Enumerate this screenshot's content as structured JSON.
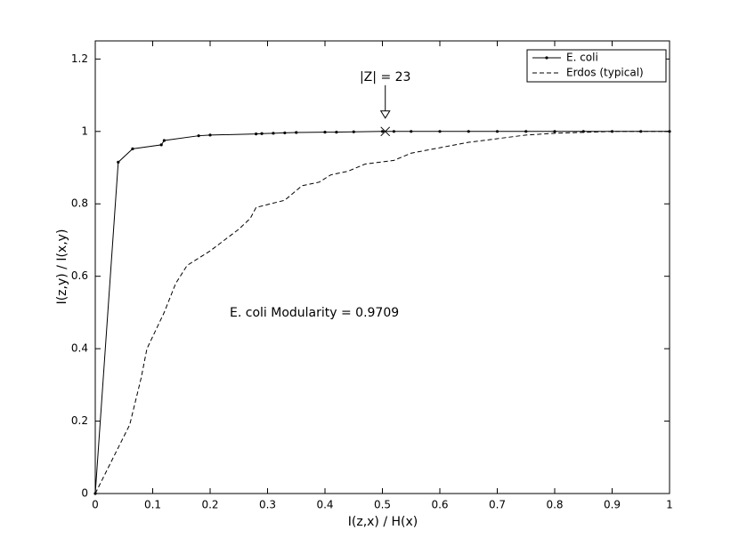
{
  "chart_data": {
    "type": "line",
    "x_label": "I(z,x) / H(x)",
    "y_label": "I(z,y) / I(x,y)",
    "xlim": [
      0,
      1
    ],
    "ylim": [
      0,
      1.25
    ],
    "xticks": [
      0,
      0.1,
      0.2,
      0.3,
      0.4,
      0.5,
      0.6,
      0.7,
      0.8,
      0.9,
      1
    ],
    "yticks": [
      0,
      0.2,
      0.4,
      0.6,
      0.8,
      1,
      1.2
    ],
    "grid": false,
    "legend": "upper right",
    "series": [
      {
        "name": "E. coli",
        "color": "#000000",
        "line_style": "solid",
        "marker": "dot",
        "x": [
          0,
          0.04,
          0.065,
          0.115,
          0.12,
          0.18,
          0.2,
          0.28,
          0.29,
          0.31,
          0.33,
          0.35,
          0.4,
          0.42,
          0.45,
          0.5,
          0.52,
          0.55,
          0.6,
          0.65,
          0.7,
          0.75,
          0.8,
          0.85,
          0.9,
          0.95,
          1
        ],
        "values": [
          0,
          0.915,
          0.952,
          0.963,
          0.975,
          0.988,
          0.99,
          0.993,
          0.994,
          0.995,
          0.996,
          0.997,
          0.998,
          0.998,
          0.999,
          1,
          1,
          1,
          1,
          1,
          1,
          1,
          1,
          1,
          1,
          1,
          1
        ]
      },
      {
        "name": "Erdos (typical)",
        "color": "#000000",
        "line_style": "dashed",
        "marker": "none",
        "x": [
          0,
          0.06,
          0.08,
          0.09,
          0.12,
          0.14,
          0.16,
          0.2,
          0.25,
          0.27,
          0.28,
          0.33,
          0.36,
          0.39,
          0.41,
          0.44,
          0.47,
          0.52,
          0.55,
          0.6,
          0.65,
          0.7,
          0.75,
          0.8,
          0.9,
          1
        ],
        "values": [
          0,
          0.19,
          0.32,
          0.4,
          0.5,
          0.58,
          0.63,
          0.67,
          0.73,
          0.76,
          0.79,
          0.81,
          0.85,
          0.86,
          0.88,
          0.89,
          0.91,
          0.92,
          0.94,
          0.955,
          0.97,
          0.98,
          0.99,
          0.995,
          1,
          1
        ]
      }
    ],
    "highlight": {
      "label": "|Z| = 23",
      "x": 0.505,
      "y": 1
    },
    "note": "E. coli Modularity = 0.9709"
  }
}
